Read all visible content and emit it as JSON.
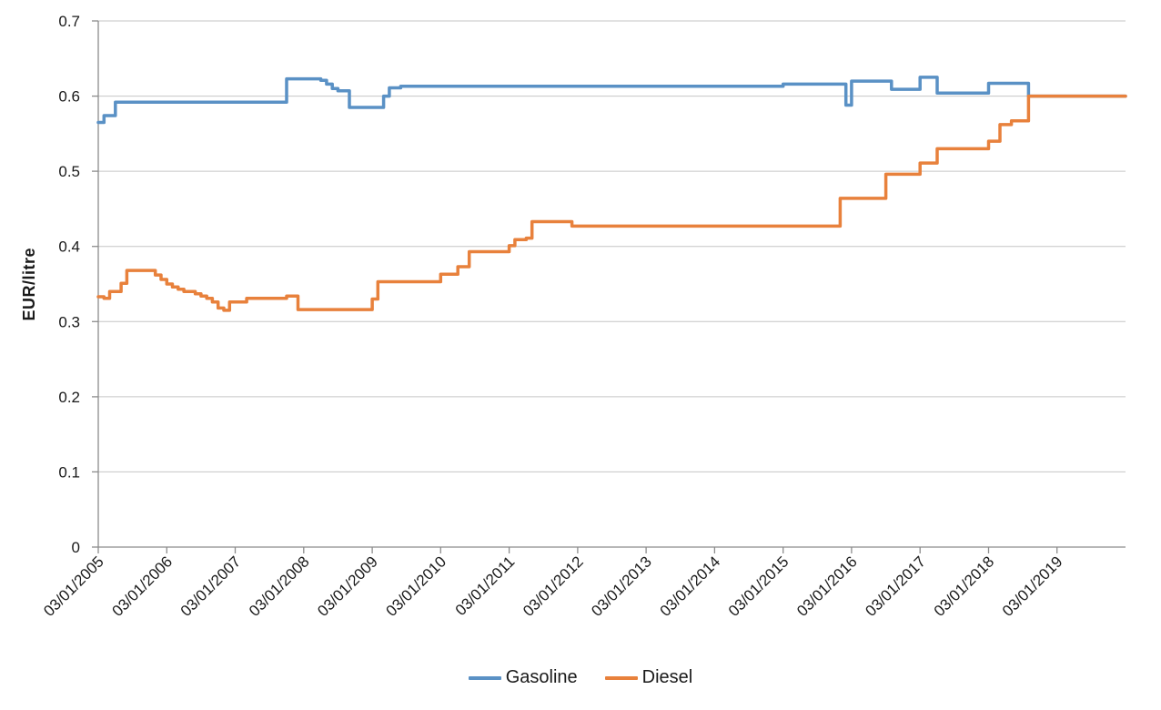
{
  "page": {
    "background": "#FFFFFF",
    "type": "line-chart-screenshot"
  },
  "colors": {
    "gasoline_line": "#5A91C5",
    "diesel_line": "#E8813C",
    "gridline": "#C6C6C6",
    "axis_line": "#8C8C8C",
    "tick_text": "#1A1A1A"
  },
  "chart_data": {
    "type": "line",
    "step": true,
    "title": "",
    "xlabel": "",
    "ylabel": "EUR/litre",
    "ylim": [
      0,
      0.7
    ],
    "y_tick_step": 0.1,
    "y_tick_labels": [
      "0",
      "0.1",
      "0.2",
      "0.3",
      "0.4",
      "0.5",
      "0.6",
      "0.7"
    ],
    "x_range": [
      "2005-01",
      "2020-01"
    ],
    "x_tick_labels": [
      "03/01/2005",
      "03/01/2006",
      "03/01/2007",
      "03/01/2008",
      "03/01/2009",
      "03/01/2010",
      "03/01/2011",
      "03/01/2012",
      "03/01/2013",
      "03/01/2014",
      "03/01/2015",
      "03/01/2016",
      "03/01/2017",
      "03/01/2018",
      "03/01/2019"
    ],
    "grid": "horizontal",
    "legend_position": "bottom",
    "series": [
      {
        "name": "Gasoline",
        "color": "#5A91C5",
        "points": [
          [
            "2005-01",
            0.565
          ],
          [
            "2005-02",
            0.574
          ],
          [
            "2005-04",
            0.592
          ],
          [
            "2007-10",
            0.623
          ],
          [
            "2008-04",
            0.621
          ],
          [
            "2008-05",
            0.616
          ],
          [
            "2008-06",
            0.61
          ],
          [
            "2008-07",
            0.607
          ],
          [
            "2008-09",
            0.585
          ],
          [
            "2009-03",
            0.6
          ],
          [
            "2009-04",
            0.611
          ],
          [
            "2009-06",
            0.613
          ],
          [
            "2015-01",
            0.616
          ],
          [
            "2015-12",
            0.588
          ],
          [
            "2016-01",
            0.62
          ],
          [
            "2016-08",
            0.609
          ],
          [
            "2017-01",
            0.625
          ],
          [
            "2017-04",
            0.604
          ],
          [
            "2018-01",
            0.617
          ],
          [
            "2018-08",
            0.6
          ],
          [
            "2020-01",
            0.6
          ]
        ]
      },
      {
        "name": "Diesel",
        "color": "#E8813C",
        "points": [
          [
            "2005-01",
            0.333
          ],
          [
            "2005-02",
            0.331
          ],
          [
            "2005-03",
            0.34
          ],
          [
            "2005-05",
            0.351
          ],
          [
            "2005-06",
            0.368
          ],
          [
            "2005-11",
            0.362
          ],
          [
            "2005-12",
            0.356
          ],
          [
            "2006-01",
            0.35
          ],
          [
            "2006-02",
            0.346
          ],
          [
            "2006-03",
            0.343
          ],
          [
            "2006-04",
            0.34
          ],
          [
            "2006-06",
            0.337
          ],
          [
            "2006-07",
            0.334
          ],
          [
            "2006-08",
            0.331
          ],
          [
            "2006-09",
            0.326
          ],
          [
            "2006-10",
            0.318
          ],
          [
            "2006-11",
            0.315
          ],
          [
            "2006-12",
            0.326
          ],
          [
            "2007-03",
            0.331
          ],
          [
            "2007-10",
            0.334
          ],
          [
            "2007-12",
            0.316
          ],
          [
            "2009-01",
            0.33
          ],
          [
            "2009-02",
            0.353
          ],
          [
            "2010-01",
            0.363
          ],
          [
            "2010-04",
            0.373
          ],
          [
            "2010-06",
            0.393
          ],
          [
            "2011-01",
            0.401
          ],
          [
            "2011-02",
            0.409
          ],
          [
            "2011-04",
            0.411
          ],
          [
            "2011-05",
            0.433
          ],
          [
            "2011-12",
            0.427
          ],
          [
            "2015-11",
            0.464
          ],
          [
            "2016-07",
            0.496
          ],
          [
            "2017-01",
            0.511
          ],
          [
            "2017-04",
            0.53
          ],
          [
            "2018-01",
            0.54
          ],
          [
            "2018-03",
            0.562
          ],
          [
            "2018-05",
            0.567
          ],
          [
            "2018-08",
            0.6
          ],
          [
            "2020-01",
            0.6
          ]
        ]
      }
    ]
  }
}
